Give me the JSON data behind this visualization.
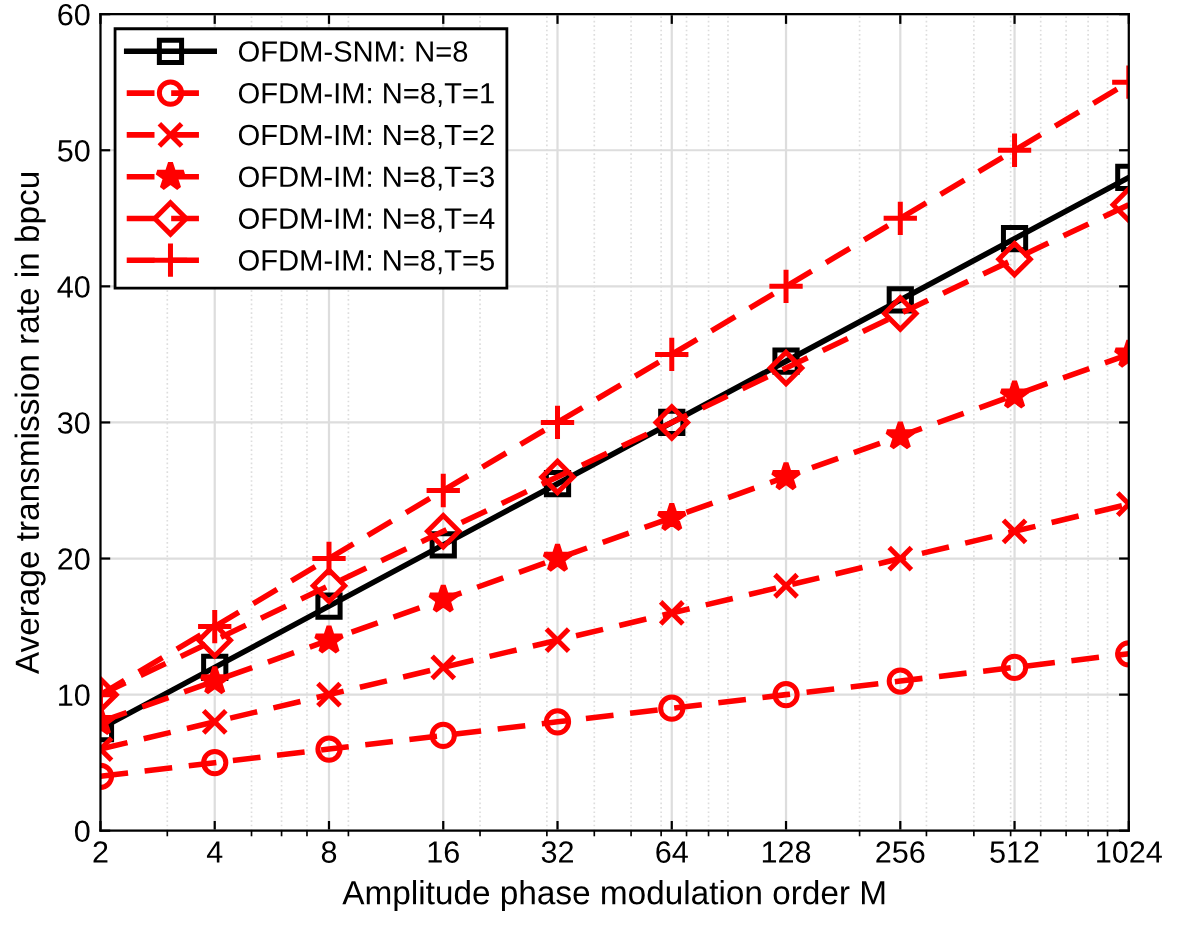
{
  "chart_data": {
    "type": "line",
    "xlabel": "Amplitude phase modulation order M",
    "ylabel": "Average transmission rate in bpcu",
    "x": [
      2,
      4,
      8,
      16,
      32,
      64,
      128,
      256,
      512,
      1024
    ],
    "log": "x",
    "xlim": [
      2,
      1024
    ],
    "xticks": [
      2,
      4,
      8,
      16,
      32,
      64,
      128,
      256,
      512,
      1024
    ],
    "ylim": [
      0,
      60
    ],
    "yticks": [
      0,
      10,
      20,
      30,
      40,
      50,
      60
    ],
    "grid": true,
    "legend": "top left",
    "series": [
      {
        "name": "OFDM-SNM: N=8",
        "color": "#000000",
        "marker": "square",
        "line_style": "solid",
        "values": [
          7.5,
          12,
          16.5,
          21,
          25.5,
          30,
          34.5,
          39,
          43.5,
          48
        ]
      },
      {
        "name": "OFDM-IM: N=8,T=1",
        "color": "#ff0000",
        "marker": "circle",
        "line_style": "dashed",
        "values": [
          4,
          5,
          6,
          7,
          8,
          9,
          10,
          11,
          12,
          13
        ]
      },
      {
        "name": "OFDM-IM: N=8,T=2",
        "color": "#ff0000",
        "marker": "cross",
        "line_style": "dashed",
        "values": [
          6,
          8,
          10,
          12,
          14,
          16,
          18,
          20,
          22,
          24
        ]
      },
      {
        "name": "OFDM-IM: N=8,T=3",
        "color": "#ff0000",
        "marker": "star",
        "line_style": "dashed",
        "values": [
          8,
          11,
          14,
          17,
          20,
          23,
          26,
          29,
          32,
          35
        ]
      },
      {
        "name": "OFDM-IM: N=8,T=4",
        "color": "#ff0000",
        "marker": "diamond",
        "line_style": "dashed",
        "values": [
          10,
          14,
          18,
          22,
          26,
          30,
          34,
          38,
          42,
          46
        ]
      },
      {
        "name": "OFDM-IM: N=8,T=5",
        "color": "#ff0000",
        "marker": "plus",
        "line_style": "dashed",
        "values": [
          10,
          15,
          20,
          25,
          30,
          35,
          40,
          45,
          50,
          55
        ]
      }
    ]
  }
}
